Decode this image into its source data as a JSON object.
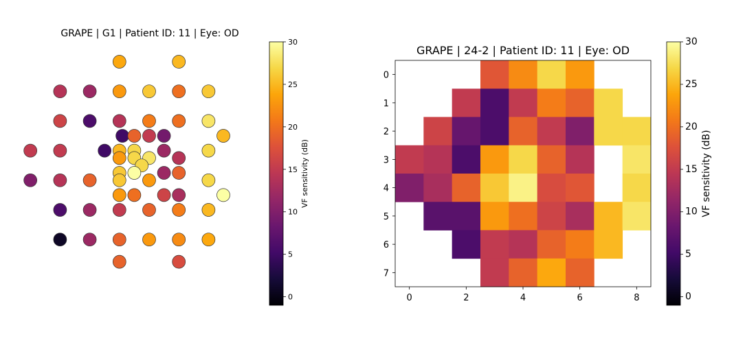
{
  "chart_data": [
    {
      "type": "scatter",
      "title": "GRAPE | G1 | Patient ID: 11 | Eye: OD",
      "colormap": "inferno",
      "clim": [
        -1,
        30
      ],
      "colorbar": {
        "label": "VF sensitivity (dB)",
        "ticks": [
          0,
          5,
          10,
          15,
          20,
          25,
          30
        ]
      },
      "axes_visible": false,
      "points": [
        {
          "x": -2,
          "y": 7.5,
          "v": 24
        },
        {
          "x": 2,
          "y": 7.5,
          "v": 25
        },
        {
          "x": -6,
          "y": 5.5,
          "v": 14
        },
        {
          "x": -4,
          "y": 5.5,
          "v": 12
        },
        {
          "x": -2,
          "y": 5.5,
          "v": 23
        },
        {
          "x": 0,
          "y": 5.5,
          "v": 26
        },
        {
          "x": 2,
          "y": 5.5,
          "v": 20
        },
        {
          "x": 4,
          "y": 5.5,
          "v": 26
        },
        {
          "x": -6,
          "y": 3.5,
          "v": 16
        },
        {
          "x": -4,
          "y": 3.5,
          "v": 6
        },
        {
          "x": -2,
          "y": 3.5,
          "v": 14
        },
        {
          "x": 0,
          "y": 3.5,
          "v": 21
        },
        {
          "x": 2,
          "y": 3.5,
          "v": 20
        },
        {
          "x": 4,
          "y": 3.5,
          "v": 28
        },
        {
          "x": -1.8,
          "y": 2.5,
          "v": 5
        },
        {
          "x": -1,
          "y": 2.5,
          "v": 19
        },
        {
          "x": 0,
          "y": 2.5,
          "v": 15
        },
        {
          "x": 1,
          "y": 2.5,
          "v": 9
        },
        {
          "x": 5,
          "y": 2.5,
          "v": 25
        },
        {
          "x": -8,
          "y": 1.5,
          "v": 15
        },
        {
          "x": -6,
          "y": 1.5,
          "v": 15
        },
        {
          "x": -3,
          "y": 1.5,
          "v": 5
        },
        {
          "x": -2,
          "y": 1.5,
          "v": 25
        },
        {
          "x": -1,
          "y": 1.5,
          "v": 27
        },
        {
          "x": 1,
          "y": 1.5,
          "v": 12
        },
        {
          "x": 4,
          "y": 1.5,
          "v": 27
        },
        {
          "x": -2,
          "y": 1.0,
          "v": 23
        },
        {
          "x": -1,
          "y": 1.0,
          "v": 27
        },
        {
          "x": 0,
          "y": 1.0,
          "v": 28
        },
        {
          "x": 2,
          "y": 1.0,
          "v": 14
        },
        {
          "x": -0.5,
          "y": 0.5,
          "v": 27
        },
        {
          "x": -2,
          "y": 0.0,
          "v": 26
        },
        {
          "x": -1,
          "y": 0.0,
          "v": 30
        },
        {
          "x": 1,
          "y": 0.0,
          "v": 12
        },
        {
          "x": 2,
          "y": 0.0,
          "v": 19
        },
        {
          "x": -8,
          "y": -0.5,
          "v": 10
        },
        {
          "x": -6,
          "y": -0.5,
          "v": 14
        },
        {
          "x": -4,
          "y": -0.5,
          "v": 19
        },
        {
          "x": -2,
          "y": -0.5,
          "v": 26
        },
        {
          "x": 0,
          "y": -0.5,
          "v": 23
        },
        {
          "x": 4,
          "y": -0.5,
          "v": 27
        },
        {
          "x": -2,
          "y": -1.5,
          "v": 23
        },
        {
          "x": -1,
          "y": -1.5,
          "v": 20
        },
        {
          "x": 1,
          "y": -1.5,
          "v": 16
        },
        {
          "x": 2,
          "y": -1.5,
          "v": 13
        },
        {
          "x": 5,
          "y": -1.5,
          "v": 30
        },
        {
          "x": -6,
          "y": -2.5,
          "v": 6
        },
        {
          "x": -4,
          "y": -2.5,
          "v": 12
        },
        {
          "x": -2,
          "y": -2.5,
          "v": 15
        },
        {
          "x": 0,
          "y": -2.5,
          "v": 19
        },
        {
          "x": 2,
          "y": -2.5,
          "v": 21
        },
        {
          "x": 4,
          "y": -2.5,
          "v": 25
        },
        {
          "x": -6,
          "y": -4.5,
          "v": 1
        },
        {
          "x": -4,
          "y": -4.5,
          "v": 12
        },
        {
          "x": -2,
          "y": -4.5,
          "v": 19
        },
        {
          "x": 0,
          "y": -4.5,
          "v": 23
        },
        {
          "x": 2,
          "y": -4.5,
          "v": 22
        },
        {
          "x": 4,
          "y": -4.5,
          "v": 24
        },
        {
          "x": -2,
          "y": -6,
          "v": 19
        },
        {
          "x": 2,
          "y": -6,
          "v": 17
        }
      ]
    },
    {
      "type": "heatmap",
      "title": "GRAPE | 24-2 | Patient ID: 11 | Eye: OD",
      "colormap": "inferno",
      "clim": [
        -1,
        30
      ],
      "colorbar": {
        "label": "VF sensitivity (dB)",
        "ticks": [
          0,
          5,
          10,
          15,
          20,
          25,
          30
        ]
      },
      "x_ticks": [
        0,
        2,
        4,
        6,
        8
      ],
      "y_ticks": [
        0,
        1,
        2,
        3,
        4,
        5,
        6,
        7
      ],
      "grid": [
        [
          null,
          null,
          null,
          18,
          22,
          27,
          23,
          null,
          null
        ],
        [
          null,
          null,
          15,
          6,
          15,
          21,
          19,
          27,
          null
        ],
        [
          null,
          16,
          8,
          6,
          19,
          15,
          10,
          27,
          27
        ],
        [
          15,
          14,
          6,
          23,
          27,
          19,
          14,
          null,
          28
        ],
        [
          10,
          13,
          19,
          26,
          29,
          17,
          18,
          null,
          27
        ],
        [
          null,
          7,
          7,
          23,
          20,
          16,
          13,
          25,
          28
        ],
        [
          null,
          null,
          6,
          15,
          14,
          19,
          21,
          25,
          null
        ],
        [
          null,
          null,
          null,
          15,
          19,
          24,
          19,
          null,
          null
        ]
      ]
    }
  ]
}
